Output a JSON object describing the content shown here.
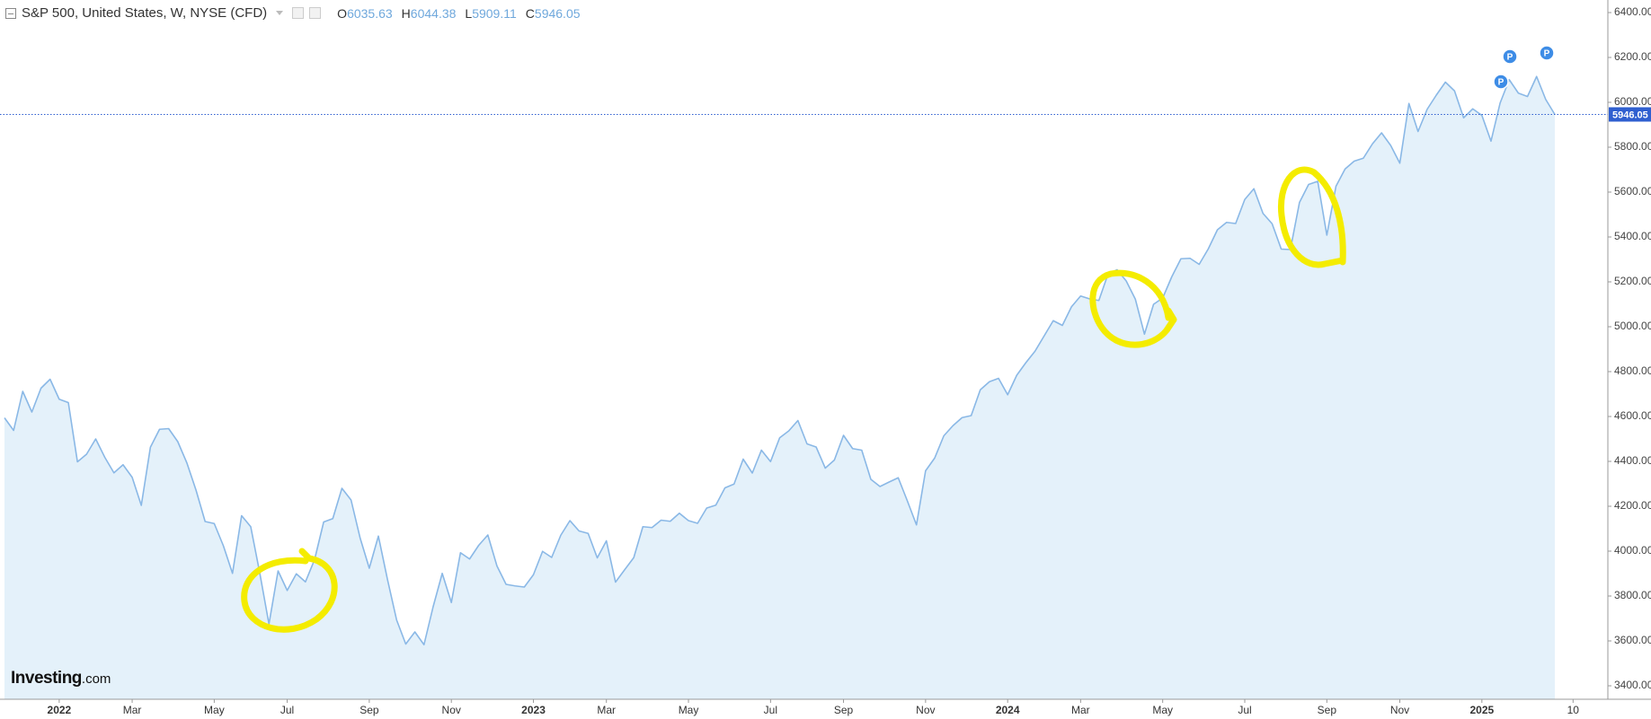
{
  "chart_data": {
    "type": "area",
    "title": "S&P 500, United States, W, NYSE (CFD)",
    "ohlc": [
      {
        "label": "O",
        "value": 6035.63
      },
      {
        "label": "H",
        "value": 6044.38
      },
      {
        "label": "L",
        "value": 5909.11
      },
      {
        "label": "C",
        "value": 5946.05
      }
    ],
    "last_price": 5946.05,
    "watermark": {
      "brand": "Investing",
      "suffix": ".com"
    },
    "event_markers": [
      "P",
      "P",
      "P"
    ],
    "color": "#8ab8e6",
    "fill_color": "#e4f1fa",
    "last_price_color": "#2f5fd0",
    "grid": false,
    "ylim": [
      3340,
      6456
    ],
    "yticks": [
      {
        "value": 3400,
        "label": "3400.00"
      },
      {
        "value": 3600,
        "label": "3600.00"
      },
      {
        "value": 3800,
        "label": "3800.00"
      },
      {
        "value": 4000,
        "label": "4000.00"
      },
      {
        "value": 4200,
        "label": "4200.00"
      },
      {
        "value": 4400,
        "label": "4400.00"
      },
      {
        "value": 4600,
        "label": "4600.00"
      },
      {
        "value": 4800,
        "label": "4800.00"
      },
      {
        "value": 5000,
        "label": "5000.00"
      },
      {
        "value": 5200,
        "label": "5200.00"
      },
      {
        "value": 5400,
        "label": "5400.00"
      },
      {
        "value": 5600,
        "label": "5600.00"
      },
      {
        "value": 5800,
        "label": "5800.00"
      },
      {
        "value": 6000,
        "label": "6000.00"
      },
      {
        "value": 6200,
        "label": "6200.00"
      },
      {
        "value": 6400,
        "label": "6400.00"
      }
    ],
    "categories": [
      null,
      null,
      null,
      null,
      null,
      null,
      "2022",
      null,
      null,
      null,
      null,
      null,
      null,
      null,
      "Mar",
      null,
      null,
      null,
      null,
      null,
      null,
      null,
      null,
      "May",
      null,
      null,
      null,
      null,
      null,
      null,
      null,
      "Jul",
      null,
      null,
      null,
      null,
      null,
      null,
      null,
      null,
      "Sep",
      null,
      null,
      null,
      null,
      null,
      null,
      null,
      null,
      "Nov",
      null,
      null,
      null,
      null,
      null,
      null,
      null,
      null,
      "2023",
      null,
      null,
      null,
      null,
      null,
      null,
      null,
      "Mar",
      null,
      null,
      null,
      null,
      null,
      null,
      null,
      null,
      "May",
      null,
      null,
      null,
      null,
      null,
      null,
      null,
      null,
      "Jul",
      null,
      null,
      null,
      null,
      null,
      null,
      null,
      "Sep",
      null,
      null,
      null,
      null,
      null,
      null,
      null,
      null,
      "Nov",
      null,
      null,
      null,
      null,
      null,
      null,
      null,
      null,
      "2024",
      null,
      null,
      null,
      null,
      null,
      null,
      null,
      "Mar",
      null,
      null,
      null,
      null,
      null,
      null,
      null,
      null,
      "May",
      null,
      null,
      null,
      null,
      null,
      null,
      null,
      null,
      "Jul",
      null,
      null,
      null,
      null,
      null,
      null,
      null,
      null,
      "Sep",
      null,
      null,
      null,
      null,
      null,
      null,
      null,
      "Nov",
      null,
      null,
      null,
      null,
      null,
      null,
      null,
      null,
      "2025",
      null,
      null,
      null,
      null,
      null,
      null,
      null,
      null,
      null,
      "10"
    ],
    "values": [
      4594,
      4538,
      4712,
      4620,
      4726,
      4766,
      4677,
      4662,
      4398,
      4432,
      4500,
      4418,
      4349,
      4385,
      4329,
      4204,
      4463,
      4543,
      4546,
      4488,
      4393,
      4272,
      4132,
      4123,
      4024,
      3901,
      4158,
      4109,
      3901,
      3675,
      3912,
      3825,
      3899,
      3863,
      3962,
      4130,
      4145,
      4280,
      4228,
      4058,
      3924,
      4067,
      3873,
      3693,
      3586,
      3640,
      3583,
      3752,
      3901,
      3771,
      3993,
      3965,
      4026,
      4072,
      3934,
      3852,
      3845,
      3840,
      3895,
      3999,
      3972,
      4071,
      4136,
      4090,
      4079,
      3970,
      4046,
      3862,
      3917,
      3971,
      4109,
      4105,
      4138,
      4133,
      4169,
      4136,
      4124,
      4192,
      4205,
      4282,
      4299,
      4410,
      4348,
      4450,
      4399,
      4505,
      4536,
      4582,
      4478,
      4464,
      4370,
      4406,
      4516,
      4457,
      4450,
      4320,
      4288,
      4308,
      4327,
      4224,
      4117,
      4358,
      4415,
      4514,
      4559,
      4595,
      4604,
      4719,
      4755,
      4770,
      4697,
      4784,
      4840,
      4891,
      4959,
      5027,
      5006,
      5089,
      5137,
      5124,
      5117,
      5234,
      5254,
      5204,
      5123,
      4967,
      5100,
      5128,
      5223,
      5303,
      5305,
      5278,
      5347,
      5432,
      5465,
      5460,
      5567,
      5615,
      5505,
      5459,
      5346,
      5344,
      5554,
      5634,
      5648,
      5408,
      5626,
      5703,
      5738,
      5751,
      5815,
      5864,
      5808,
      5729,
      5995,
      5870,
      5969,
      6032,
      6090,
      6051,
      5931,
      5971,
      5942,
      5827,
      5997,
      6101,
      6041,
      6026,
      6115,
      6013,
      5946.05,
      null,
      null
    ]
  }
}
